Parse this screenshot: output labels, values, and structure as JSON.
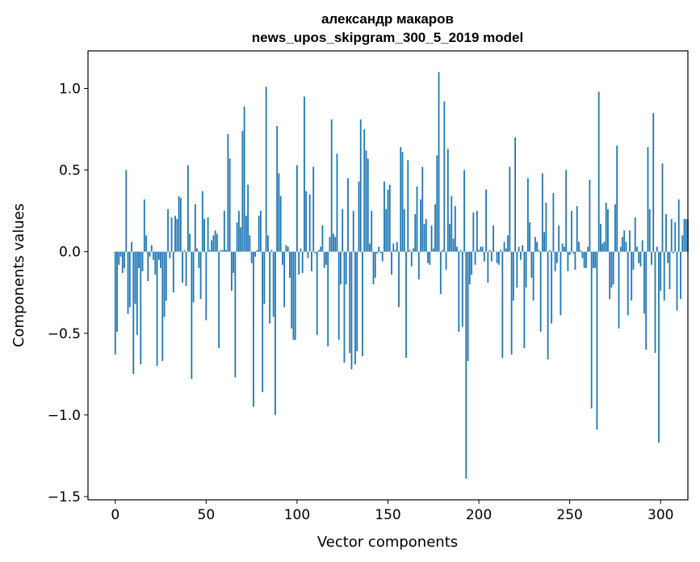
{
  "chart_data": {
    "type": "bar",
    "title_line1": "александр макаров",
    "title_line2": "news_upos_skipgram_300_5_2019 model",
    "xlabel": "Vector components",
    "ylabel": "Components values",
    "xlim": [
      -15,
      315
    ],
    "ylim": [
      -1.52,
      1.23
    ],
    "x_ticks": [
      0,
      50,
      100,
      150,
      200,
      250,
      300
    ],
    "y_ticks": [
      {
        "value": 1.0,
        "label": "1.0"
      },
      {
        "value": 0.5,
        "label": "0.5"
      },
      {
        "value": 0.0,
        "label": "0.0"
      },
      {
        "value": -0.5,
        "label": "−0.5"
      },
      {
        "value": -1.0,
        "label": "−1.0"
      },
      {
        "value": -1.5,
        "label": "−1.5"
      }
    ],
    "bar_color": "#1f77b4",
    "values": [
      -0.63,
      -0.49,
      -0.08,
      -0.03,
      -0.13,
      -0.1,
      0.5,
      -0.38,
      -0.34,
      0.06,
      -0.75,
      -0.32,
      -0.51,
      -0.1,
      -0.69,
      -0.12,
      0.32,
      0.1,
      -0.18,
      -0.03,
      0.04,
      -0.05,
      -0.14,
      -0.7,
      -0.05,
      -0.1,
      -0.67,
      -0.4,
      -0.3,
      0.26,
      -0.04,
      0.21,
      -0.25,
      0.22,
      0.2,
      0.34,
      0.33,
      -0.19,
      0.01,
      -0.21,
      0.53,
      0.11,
      -0.78,
      -0.31,
      0.29,
      0.02,
      -0.1,
      -0.29,
      0.37,
      0.2,
      -0.42,
      0.21,
      0.01,
      0.07,
      0.1,
      0.13,
      0.11,
      -0.59,
      0.01,
      0.01,
      0.25,
      0.01,
      0.72,
      0.57,
      -0.24,
      -0.13,
      -0.77,
      0.18,
      0.25,
      0.15,
      0.74,
      0.89,
      0.22,
      0.41,
      0.1,
      -0.07,
      -0.95,
      -0.03,
      0.01,
      0.22,
      0.25,
      -0.86,
      -0.32,
      1.01,
      0.1,
      -0.44,
      0.01,
      -0.4,
      -1.0,
      0.77,
      0.48,
      0.34,
      -0.08,
      -0.34,
      0.04,
      0.03,
      -0.16,
      -0.47,
      -0.54,
      -0.54,
      0.53,
      -0.14,
      0.02,
      -0.13,
      0.95,
      0.37,
      -0.04,
      0.35,
      -0.12,
      0.52,
      -0.01,
      -0.51,
      0.01,
      0.03,
      0.16,
      -0.1,
      -0.08,
      -0.58,
      0.09,
      0.81,
      0.11,
      0.09,
      0.6,
      -0.54,
      -0.2,
      0.26,
      -0.68,
      -0.2,
      0.45,
      -0.62,
      -0.72,
      0.25,
      -0.69,
      -0.61,
      0.43,
      0.81,
      -0.64,
      0.75,
      0.62,
      0.57,
      0.05,
      0.25,
      -0.2,
      -0.16,
      -0.01,
      0.03,
      -0.01,
      -0.06,
      0.43,
      0.26,
      0.38,
      0.41,
      -0.14,
      0.05,
      0.01,
      0.06,
      -0.34,
      0.64,
      0.61,
      0.26,
      -0.65,
      0.56,
      0.01,
      -0.09,
      0.02,
      0.23,
      0.4,
      -0.17,
      0.32,
      0.52,
      0.17,
      0.2,
      -0.07,
      -0.08,
      0.16,
      0.02,
      0.29,
      0.59,
      1.1,
      -0.26,
      0.01,
      0.92,
      -0.11,
      0.63,
      0.17,
      0.34,
      0.08,
      0.28,
      0.03,
      -0.49,
      0.01,
      -0.46,
      0.5,
      -1.39,
      -0.67,
      -0.2,
      -0.14,
      0.24,
      -0.08,
      0.25,
      0.01,
      0.03,
      0.03,
      -0.06,
      0.38,
      -0.19,
      0.01,
      -0.06,
      0.16,
      0.0,
      -0.07,
      -0.08,
      0.01,
      -0.65,
      0.06,
      0.02,
      0.1,
      0.52,
      -0.63,
      -0.3,
      0.7,
      -0.22,
      0.03,
      -0.05,
      0.04,
      -0.59,
      -0.22,
      0.45,
      0.18,
      -0.16,
      -0.3,
      0.09,
      0.06,
      0.01,
      -0.49,
      0.48,
      0.12,
      0.3,
      -0.66,
      0.01,
      -0.44,
      0.36,
      -0.12,
      -0.07,
      0.16,
      -0.39,
      0.05,
      0.03,
      0.5,
      -0.12,
      -0.02,
      0.25,
      -0.01,
      -0.11,
      0.28,
      0.06,
      0.01,
      -0.04,
      -0.1,
      -0.1,
      0.03,
      0.44,
      -0.96,
      -0.1,
      -0.1,
      -1.09,
      0.98,
      0.17,
      0.05,
      0.06,
      0.3,
      0.26,
      -0.29,
      -0.22,
      -0.2,
      0.29,
      0.65,
      -0.47,
      0.03,
      0.09,
      0.13,
      0.06,
      -0.39,
      0.13,
      -0.3,
      -0.11,
      0.21,
      0.03,
      -0.07,
      -0.09,
      0.07,
      -0.38,
      -0.6,
      0.64,
      0.26,
      -0.08,
      0.85,
      -0.62,
      0.03,
      -1.17,
      -0.24,
      0.54,
      -0.3,
      0.23,
      -0.07,
      -0.23,
      0.2,
      -0.01,
      0.18,
      -0.36,
      0.32,
      -0.29,
      0.1,
      0.2,
      0.2,
      0.2
    ]
  }
}
